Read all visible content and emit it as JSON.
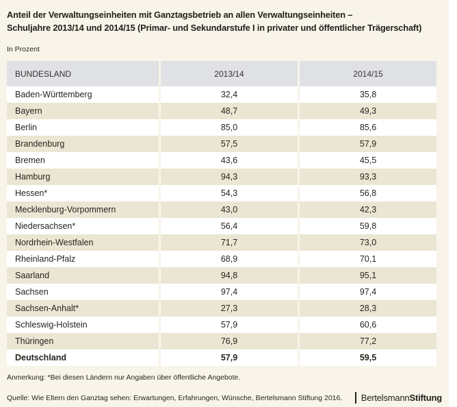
{
  "page": {
    "title_line1": "Anteil der Verwaltungseinheiten mit Ganztagsbetrieb an allen Verwaltungseinheiten –",
    "title_line2": "Schuljahre 2013/14 und 2014/15 (Primar- und Sekundarstufe I in privater und öffentlicher Trägerschaft)",
    "unit_label": "In Prozent",
    "note": "Anmerkung: *Bei diesen Ländern nur Angaben über öffentliche Angebote.",
    "source": "Quelle: Wie Eltern den Ganztag sehen: Erwartungen, Erfahrungen, Wünsche, Bertelsmann Stiftung 2016.",
    "logo": {
      "part1": "Bertelsmann",
      "part2": "Stiftung"
    }
  },
  "colors": {
    "page_bg": "#f8f4e9",
    "header_bg": "#e0e1e5",
    "row_bg": "#ffffff",
    "row_alt_bg": "#ebe6d3",
    "text": "#21201c"
  },
  "table": {
    "headers": [
      "BUNDESLAND",
      "2013/14",
      "2014/15"
    ],
    "rows": [
      {
        "name": "Baden-Württemberg",
        "y2013": "32,4",
        "y2014": "35,8",
        "bold": false
      },
      {
        "name": "Bayern",
        "y2013": "48,7",
        "y2014": "49,3",
        "bold": false
      },
      {
        "name": "Berlin",
        "y2013": "85,0",
        "y2014": "85,6",
        "bold": false
      },
      {
        "name": "Brandenburg",
        "y2013": "57,5",
        "y2014": "57,9",
        "bold": false
      },
      {
        "name": "Bremen",
        "y2013": "43,6",
        "y2014": "45,5",
        "bold": false
      },
      {
        "name": "Hamburg",
        "y2013": "94,3",
        "y2014": "93,3",
        "bold": false
      },
      {
        "name": "Hessen*",
        "y2013": "54,3",
        "y2014": "56,8",
        "bold": false
      },
      {
        "name": "Mecklenburg-Vorpommern",
        "y2013": "43,0",
        "y2014": "42,3",
        "bold": false
      },
      {
        "name": "Niedersachsen*",
        "y2013": "56,4",
        "y2014": "59,8",
        "bold": false
      },
      {
        "name": "Nordrhein-Westfalen",
        "y2013": "71,7",
        "y2014": "73,0",
        "bold": false
      },
      {
        "name": "Rheinland-Pfalz",
        "y2013": "68,9",
        "y2014": "70,1",
        "bold": false
      },
      {
        "name": "Saarland",
        "y2013": "94,8",
        "y2014": "95,1",
        "bold": false
      },
      {
        "name": "Sachsen",
        "y2013": "97,4",
        "y2014": "97,4",
        "bold": false
      },
      {
        "name": "Sachsen-Anhalt*",
        "y2013": "27,3",
        "y2014": "28,3",
        "bold": false
      },
      {
        "name": "Schleswig-Holstein",
        "y2013": "57,9",
        "y2014": "60,6",
        "bold": false
      },
      {
        "name": "Thüringen",
        "y2013": "76,9",
        "y2014": "77,2",
        "bold": false
      },
      {
        "name": "Deutschland",
        "y2013": "57,9",
        "y2014": "59,5",
        "bold": true
      }
    ]
  },
  "chart_data": {
    "type": "table",
    "title": "Anteil der Verwaltungseinheiten mit Ganztagsbetrieb an allen Verwaltungseinheiten – Schuljahre 2013/14 und 2014/15 (Primar- und Sekundarstufe I in privater und öffentlicher Trägerschaft)",
    "unit": "In Prozent",
    "categories": [
      "Baden-Württemberg",
      "Bayern",
      "Berlin",
      "Brandenburg",
      "Bremen",
      "Hamburg",
      "Hessen*",
      "Mecklenburg-Vorpommern",
      "Niedersachsen*",
      "Nordrhein-Westfalen",
      "Rheinland-Pfalz",
      "Saarland",
      "Sachsen",
      "Sachsen-Anhalt*",
      "Schleswig-Holstein",
      "Thüringen",
      "Deutschland"
    ],
    "series": [
      {
        "name": "2013/14",
        "values": [
          32.4,
          48.7,
          85.0,
          57.5,
          43.6,
          94.3,
          54.3,
          43.0,
          56.4,
          71.7,
          68.9,
          94.8,
          97.4,
          27.3,
          57.9,
          76.9,
          57.9
        ]
      },
      {
        "name": "2014/15",
        "values": [
          35.8,
          49.3,
          85.6,
          57.9,
          45.5,
          93.3,
          56.8,
          42.3,
          59.8,
          73.0,
          70.1,
          95.1,
          97.4,
          28.3,
          60.6,
          77.2,
          59.5
        ]
      }
    ],
    "note": "Anmerkung: *Bei diesen Ländern nur Angaben über öffentliche Angebote.",
    "source": "Quelle: Wie Eltern den Ganztag sehen: Erwartungen, Erfahrungen, Wünsche, Bertelsmann Stiftung 2016."
  }
}
